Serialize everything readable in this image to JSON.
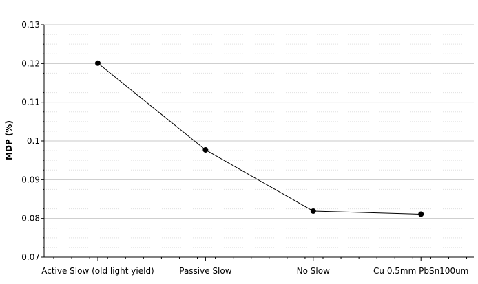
{
  "chart_data": {
    "type": "line",
    "title": "",
    "xlabel": "",
    "ylabel": "MDP (%)",
    "categories": [
      "Active Slow (old light yield)",
      "Passive Slow",
      "No Slow",
      "Cu 0.5mm PbSn100um"
    ],
    "series": [
      {
        "values": [
          0.1201,
          0.0977,
          0.0819,
          0.0811
        ]
      }
    ],
    "ylim": [
      0.07,
      0.13
    ],
    "yticks": [
      "0.07",
      "0.08",
      "0.09",
      "0.1",
      "0.11",
      "0.12",
      "0.13"
    ],
    "y_minor_step": 0.0025,
    "grid": true,
    "legend": "none",
    "colors": {
      "line": "#000000",
      "marker": "#000000",
      "major_grid": "#c8c8c8",
      "minor_grid": "#e0e0e0",
      "axis": "#000000"
    }
  }
}
